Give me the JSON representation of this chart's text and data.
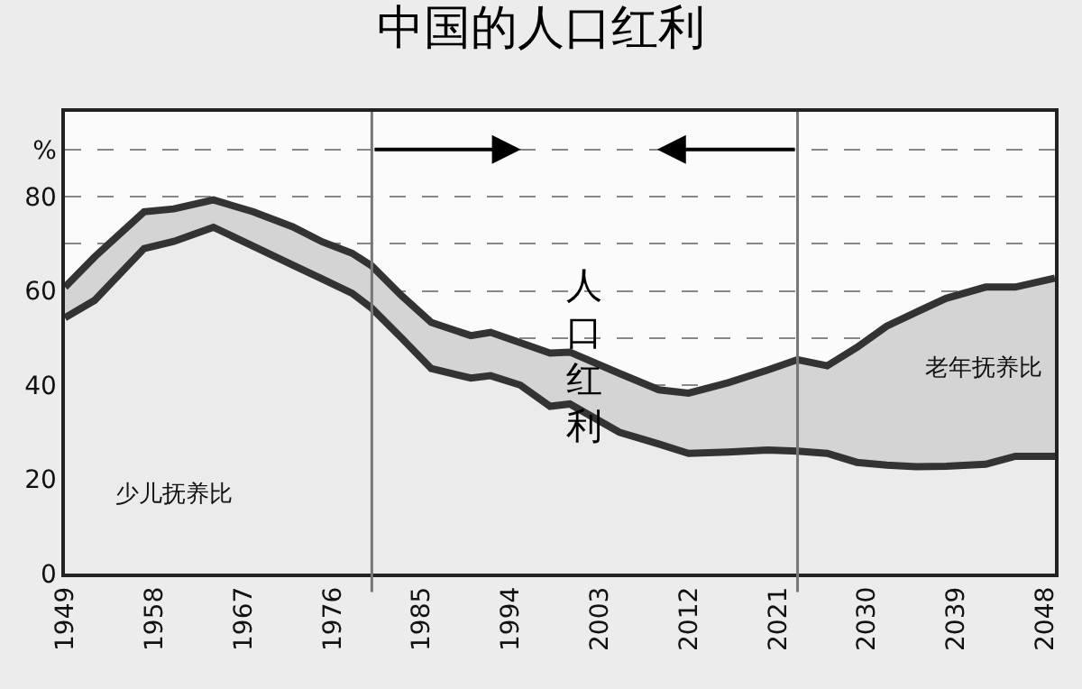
{
  "chart_data": {
    "type": "area",
    "title": "中国的人口红利",
    "stacked": true,
    "legend": false,
    "grid": "y",
    "x": [
      1949,
      1952,
      1957,
      1960,
      1964,
      1968,
      1972,
      1975,
      1978,
      1980,
      1983,
      1986,
      1990,
      1992,
      1995,
      1998,
      2000,
      2005,
      2009,
      2012,
      2016,
      2020,
      2023,
      2026,
      2029,
      2032,
      2035,
      2038,
      2042,
      2045,
      2049
    ],
    "series": [
      {
        "name": "少儿抚养比",
        "color": "#ebebeb",
        "values": [
          54.3,
          58,
          69,
          70.5,
          73.5,
          69.5,
          65.5,
          62.5,
          59.5,
          56.3,
          50,
          43.5,
          41.5,
          42,
          40,
          35.5,
          36,
          30,
          27.5,
          25.5,
          25.8,
          26.2,
          26,
          25.5,
          23.6,
          23,
          22.7,
          22.8,
          23.2,
          24.9,
          24.9
        ]
      },
      {
        "name": "老年抚养比",
        "color": "#d4d4d4",
        "values": [
          6.5,
          9.2,
          7.8,
          6.9,
          5.8,
          7.3,
          8.1,
          7.9,
          8.5,
          9.0,
          9.0,
          9.8,
          9.0,
          9.2,
          9.0,
          11.3,
          11.0,
          12.5,
          11.5,
          12.8,
          14.7,
          17.0,
          19.4,
          18.6,
          24.4,
          29.5,
          32.8,
          35.6,
          37.6,
          35.9,
          37.8
        ]
      }
    ],
    "xlim": [
      1949,
      2049
    ],
    "xticks": [
      1949,
      1958,
      1967,
      1976,
      1985,
      1994,
      2003,
      2012,
      2021,
      2030,
      2039,
      2048
    ],
    "ylim": [
      0,
      98
    ],
    "yticks": [
      0,
      20,
      40,
      {
        "value": 50,
        "label": null
      },
      60,
      {
        "value": 70,
        "label": null
      },
      80,
      {
        "value": 90,
        "label": "%"
      }
    ],
    "ref_lines": [
      {
        "axis": "x",
        "value": 1980,
        "label": null,
        "color": "#777777"
      },
      {
        "axis": "x",
        "value": 2023,
        "label": null,
        "color": "#777777"
      }
    ],
    "annotations": [
      "人口红利"
    ]
  }
}
